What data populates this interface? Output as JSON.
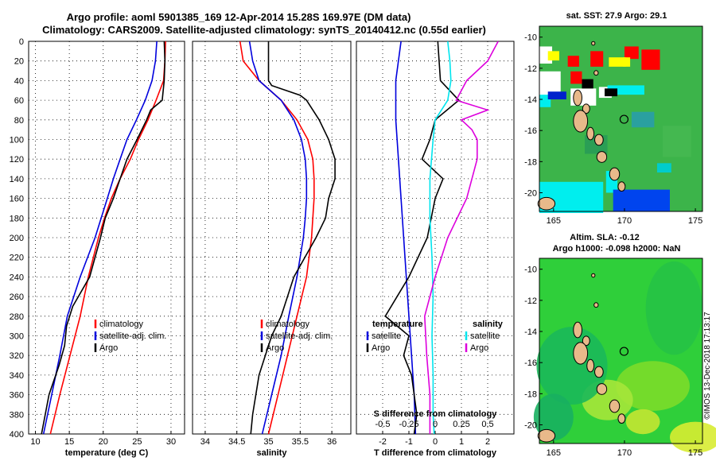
{
  "title_line1": "Argo profile: aoml 5901385_169 12-Apr-2014 15.28S 169.97E (DM data)",
  "title_line2": "Climatology: CARS2009. Satellite-adjusted climatology: synTS_20140412.nc (0.55d earlier)",
  "colors": {
    "climatology": "#ff0000",
    "satellite": "#0000dd",
    "argo": "#000000",
    "sat_salinity": "#00e5ee",
    "argo_salinity": "#dd00dd"
  },
  "depth_ticks": [
    "0",
    "20",
    "40",
    "60",
    "80",
    "100",
    "120",
    "140",
    "160",
    "180",
    "200",
    "220",
    "240",
    "260",
    "280",
    "300",
    "320",
    "340",
    "360",
    "380",
    "400"
  ],
  "chart_data": [
    {
      "type": "line",
      "name": "temperature",
      "xlabel": "temperature (deg C)",
      "ylabel": "depth",
      "xlim": [
        9,
        32
      ],
      "ylim": [
        400,
        0
      ],
      "xticks": [
        "10",
        "15",
        "20",
        "25",
        "30"
      ],
      "legend": [
        "climatology",
        "satellite-adj. clim.",
        "Argo"
      ],
      "series": [
        {
          "name": "climatology",
          "depth": [
            0,
            20,
            40,
            60,
            80,
            100,
            120,
            140,
            160,
            180,
            200,
            240,
            280,
            320,
            360,
            400
          ],
          "values": [
            29.2,
            29.1,
            28.9,
            27.8,
            26.6,
            25.2,
            24.0,
            22.5,
            21.2,
            20.2,
            19.3,
            17.8,
            16.6,
            15.1,
            13.6,
            12.2
          ]
        },
        {
          "name": "satellite-adj. clim.",
          "depth": [
            0,
            20,
            40,
            60,
            80,
            100,
            120,
            140,
            160,
            180,
            200,
            240,
            280,
            320,
            360,
            400
          ],
          "values": [
            27.9,
            27.7,
            27.2,
            26.2,
            24.9,
            23.5,
            22.5,
            21.5,
            20.6,
            19.7,
            18.8,
            16.6,
            14.7,
            13.6,
            12.4,
            11.2
          ]
        },
        {
          "name": "Argo",
          "depth": [
            0,
            20,
            40,
            60,
            70,
            80,
            100,
            120,
            140,
            160,
            180,
            200,
            240,
            270,
            290,
            310,
            330,
            360,
            400
          ],
          "values": [
            29.0,
            29.1,
            29.0,
            28.7,
            27.0,
            26.4,
            25.0,
            23.5,
            22.5,
            21.5,
            20.3,
            19.6,
            18.0,
            15.5,
            14.6,
            14.3,
            13.5,
            12.0,
            10.9
          ]
        }
      ]
    },
    {
      "type": "line",
      "name": "salinity",
      "xlabel": "salinity",
      "ylabel": "depth",
      "xlim": [
        33.8,
        36.3
      ],
      "ylim": [
        400,
        0
      ],
      "xticks": [
        "34",
        "34.5",
        "35",
        "35.5",
        "36"
      ],
      "legend": [
        "climatology",
        "satellite-adj. clim.",
        "Argo"
      ],
      "series": [
        {
          "name": "climatology",
          "depth": [
            0,
            20,
            40,
            60,
            80,
            100,
            120,
            140,
            160,
            180,
            200,
            240,
            280,
            320,
            360,
            400
          ],
          "values": [
            34.55,
            34.6,
            34.85,
            35.2,
            35.45,
            35.62,
            35.7,
            35.72,
            35.72,
            35.7,
            35.68,
            35.6,
            35.45,
            35.3,
            35.15,
            35.0
          ]
        },
        {
          "name": "satellite-adj. clim.",
          "depth": [
            0,
            20,
            40,
            60,
            80,
            100,
            120,
            140,
            160,
            180,
            200,
            240,
            280,
            320,
            360,
            400
          ],
          "values": [
            34.7,
            34.75,
            34.85,
            35.2,
            35.4,
            35.52,
            35.58,
            35.6,
            35.6,
            35.58,
            35.55,
            35.45,
            35.32,
            35.2,
            35.05,
            34.9
          ]
        },
        {
          "name": "Argo",
          "depth": [
            0,
            20,
            40,
            45,
            55,
            60,
            80,
            100,
            120,
            140,
            160,
            180,
            200,
            240,
            260,
            280,
            300,
            320,
            340,
            360,
            380,
            400
          ],
          "values": [
            35.0,
            35.0,
            35.0,
            35.05,
            35.5,
            35.6,
            35.8,
            35.95,
            36.05,
            36.05,
            35.95,
            35.9,
            35.75,
            35.4,
            35.3,
            35.2,
            35.05,
            34.95,
            34.85,
            34.8,
            34.75,
            34.72
          ]
        }
      ]
    },
    {
      "type": "line",
      "name": "difference from climatology",
      "xlabel": "T difference from climatology",
      "xlabel_top": "S difference from climatology",
      "xlim": [
        -3,
        3
      ],
      "ylim": [
        400,
        0
      ],
      "xticks": [
        "-2",
        "-1",
        "0",
        "1",
        "2"
      ],
      "xticks_top": [
        "-0.5",
        "-0.25",
        "0",
        "0.25",
        "0.5"
      ],
      "legend_temperature_title": "temperature",
      "legend_salinity_title": "salinity",
      "legend_temperature": [
        "satellite",
        "Argo"
      ],
      "legend_salinity": [
        "satellite",
        "Argo"
      ],
      "series": [
        {
          "name": "T satellite",
          "depth": [
            0,
            40,
            80,
            120,
            160,
            200,
            240,
            280,
            320,
            360,
            400
          ],
          "values": [
            -1.3,
            -1.5,
            -1.5,
            -1.4,
            -1.3,
            -1.2,
            -1.1,
            -1.0,
            -0.9,
            -0.8,
            -0.75
          ]
        },
        {
          "name": "T Argo",
          "depth": [
            0,
            40,
            60,
            80,
            100,
            120,
            140,
            160,
            200,
            240,
            280,
            300,
            320,
            340,
            380,
            400
          ],
          "values": [
            0.1,
            0.2,
            0.9,
            0.0,
            -0.2,
            -0.5,
            0.3,
            0.0,
            -0.3,
            -1.0,
            -1.9,
            -1.0,
            -1.2,
            -0.9,
            -0.7,
            -0.8
          ]
        },
        {
          "name": "S satellite",
          "depth": [
            0,
            20,
            40,
            60,
            80,
            100,
            140,
            180,
            220,
            260,
            300,
            340,
            380,
            400
          ],
          "values": [
            0.12,
            0.14,
            0.15,
            0.12,
            0.0,
            -0.02,
            -0.05,
            -0.05,
            -0.03,
            -0.02,
            -0.03,
            -0.02,
            -0.02,
            -0.01
          ]
        },
        {
          "name": "S Argo",
          "depth": [
            0,
            20,
            40,
            60,
            70,
            80,
            90,
            100,
            120,
            140,
            160,
            200,
            240,
            280,
            320,
            360,
            400
          ],
          "values": [
            0.6,
            0.5,
            0.3,
            0.2,
            0.5,
            0.25,
            0.35,
            0.4,
            0.4,
            0.35,
            0.3,
            0.12,
            0.0,
            -0.1,
            -0.08,
            -0.05,
            -0.05
          ]
        }
      ]
    }
  ],
  "sst_panel": {
    "title": "sat. SST: 27.9 Argo: 29.1",
    "lon_ticks": [
      "165",
      "170",
      "175"
    ],
    "lat_ticks": [
      "-10",
      "-12",
      "-14",
      "-16",
      "-18",
      "-20"
    ],
    "argo_position": {
      "lon": 169.97,
      "lat": -15.28
    }
  },
  "sla_panel": {
    "title_line1": "Altim. SLA: -0.12",
    "title_line2": "Argo h1000: -0.098 h2000: NaN",
    "lon_ticks": [
      "165",
      "170",
      "175"
    ],
    "lat_ticks": [
      "-10",
      "-12",
      "-14",
      "-16",
      "-18",
      "-20"
    ],
    "argo_position": {
      "lon": 169.97,
      "lat": -15.28
    }
  },
  "stamp": "©IMOS 13-Dec-2018 17:13:17"
}
